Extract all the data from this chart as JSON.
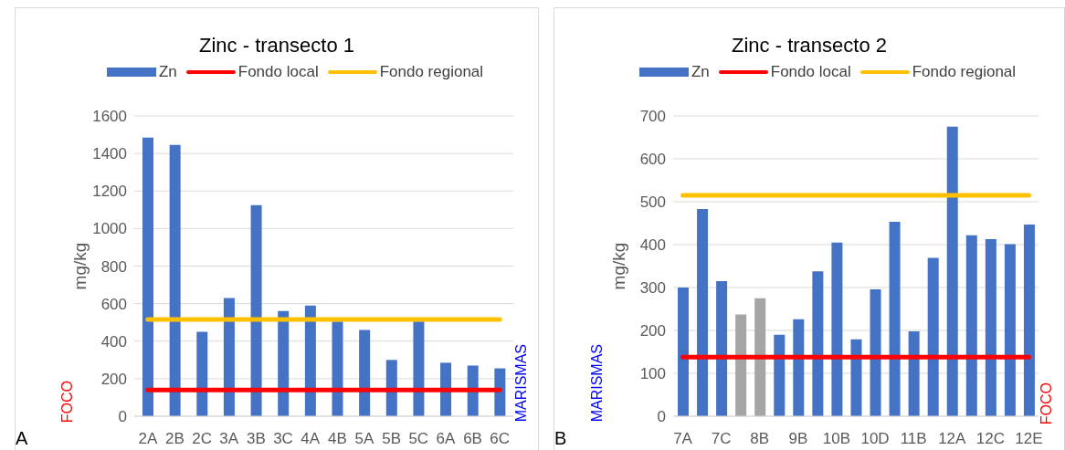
{
  "chart_data": [
    {
      "type": "bar",
      "title": "Zinc - transecto 1",
      "ylabel": "mg/kg",
      "categories": [
        "2A",
        "2B",
        "2C",
        "3A",
        "3B",
        "3C",
        "4A",
        "4B",
        "5A",
        "5B",
        "5C",
        "6A",
        "6B",
        "6C"
      ],
      "series": [
        {
          "name": "Zn",
          "color": "#4472c4",
          "values": [
            1485,
            1445,
            450,
            630,
            1125,
            560,
            590,
            505,
            460,
            300,
            505,
            285,
            270,
            255
          ]
        },
        {
          "name": "Fondo local",
          "type": "line",
          "color": "#ff0000",
          "values": [
            140,
            140,
            140,
            140,
            140,
            140,
            140,
            140,
            140,
            140,
            140,
            140,
            140,
            140
          ]
        },
        {
          "name": "Fondo regional",
          "type": "line",
          "color": "#ffc000",
          "values": [
            515,
            515,
            515,
            515,
            515,
            515,
            515,
            515,
            515,
            515,
            515,
            515,
            515,
            515
          ]
        }
      ],
      "ylim": [
        0,
        1600
      ],
      "yticks": [
        0,
        200,
        400,
        600,
        800,
        1000,
        1200,
        1400,
        1600
      ],
      "grid": "y",
      "legend": "top",
      "annotations": [
        "FOCO",
        "MARISMAS",
        "A"
      ]
    },
    {
      "type": "bar",
      "title": "Zinc - transecto 2",
      "ylabel": "mg/kg",
      "categories": [
        "7A",
        null,
        "7C",
        null,
        "8B",
        null,
        "9B",
        null,
        "10B",
        null,
        "10D",
        null,
        "11B",
        null,
        "12A",
        null,
        "12C",
        null,
        "12E"
      ],
      "series": [
        {
          "name": "Zn",
          "color": "#4472c4",
          "colors": [
            "#4472c4",
            "#4472c4",
            "#4472c4",
            "#a5a5a5",
            "#a5a5a5",
            "#4472c4",
            "#4472c4",
            "#4472c4",
            "#4472c4",
            "#4472c4",
            "#4472c4",
            "#4472c4",
            "#4472c4",
            "#4472c4",
            "#4472c4",
            "#4472c4",
            "#4472c4",
            "#4472c4",
            "#4472c4"
          ],
          "values": [
            300,
            483,
            315,
            237,
            275,
            190,
            226,
            338,
            405,
            179,
            296,
            453,
            198,
            369,
            675,
            422,
            413,
            401,
            447
          ]
        },
        {
          "name": "Fondo local",
          "type": "line",
          "color": "#ff0000",
          "values": [
            138,
            138,
            138,
            138,
            138,
            138,
            138,
            138,
            138,
            138,
            138,
            138,
            138,
            138,
            138,
            138,
            138,
            138,
            138
          ]
        },
        {
          "name": "Fondo regional",
          "type": "line",
          "color": "#ffc000",
          "values": [
            515,
            515,
            515,
            515,
            515,
            515,
            515,
            515,
            515,
            515,
            515,
            515,
            515,
            515,
            515,
            515,
            515,
            515,
            515
          ]
        }
      ],
      "ylim": [
        0,
        700
      ],
      "yticks": [
        0,
        100,
        200,
        300,
        400,
        500,
        600,
        700
      ],
      "grid": "y",
      "legend": "top",
      "annotations": [
        "MARISMAS",
        "FOCO",
        "B"
      ]
    }
  ]
}
